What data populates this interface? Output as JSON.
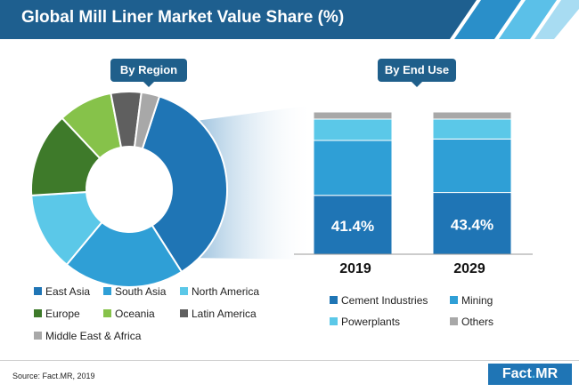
{
  "title": "Global Mill Liner Market Value Share (%)",
  "pill_region": "By Region",
  "pill_enduse": "By End Use",
  "source": "Source: Fact.MR, 2019",
  "logo": {
    "left": "Fact",
    "dot": ".",
    "right": "MR"
  },
  "colors": {
    "header": "#1e5f8f",
    "header_accent": "#5bc0e8"
  },
  "chart_data": [
    {
      "type": "pie",
      "subtype": "donut",
      "title": "By Region",
      "labels": [
        "East Asia",
        "South Asia",
        "North America",
        "Europe",
        "Oceania",
        "Latin America",
        "Middle East & Africa"
      ],
      "values": [
        36,
        20,
        13,
        14,
        9,
        5,
        3
      ],
      "colors": [
        "#1f75b5",
        "#2f9fd6",
        "#5bc8e8",
        "#3e7a2a",
        "#86c24a",
        "#5f5f5f",
        "#a8a8a8"
      ]
    },
    {
      "type": "bar",
      "subtype": "stacked",
      "title": "By End Use",
      "categories": [
        "2019",
        "2029"
      ],
      "series": [
        {
          "name": "Cement Industries",
          "values": [
            41.4,
            43.4
          ],
          "color": "#1f75b5",
          "labels": [
            "41.4%",
            "43.4%"
          ]
        },
        {
          "name": "Mining",
          "values": [
            38.6,
            37.6
          ],
          "color": "#2f9fd6"
        },
        {
          "name": "Powerplants",
          "values": [
            15,
            14
          ],
          "color": "#5bc8e8"
        },
        {
          "name": "Others",
          "values": [
            5,
            5
          ],
          "color": "#a8a8a8"
        }
      ],
      "ylim": [
        0,
        100
      ]
    }
  ]
}
